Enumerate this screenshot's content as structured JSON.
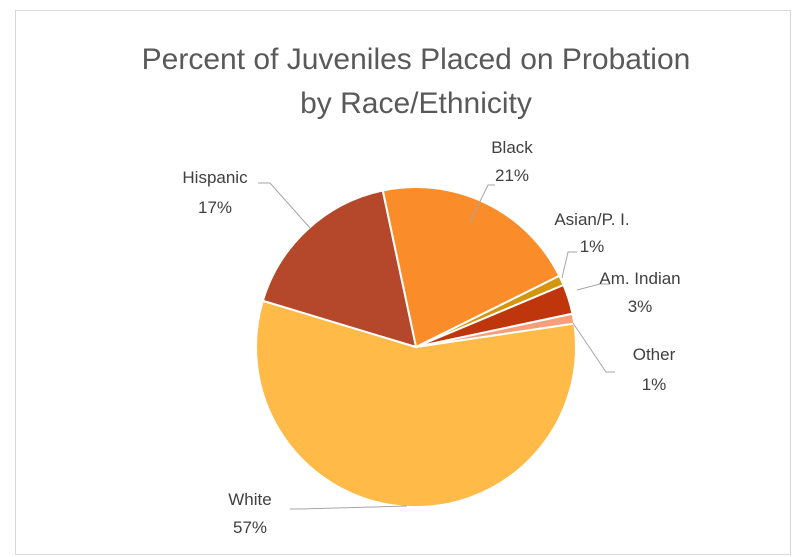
{
  "chart_data": {
    "type": "pie",
    "title": [
      "Percent of Juveniles Placed on Probation",
      "by Race/Ethnicity"
    ],
    "slices": [
      {
        "name": "Black",
        "value": 21,
        "label": "21%",
        "color": "#fb8c2a"
      },
      {
        "name": "Asian/P. I.",
        "value": 1,
        "label": "1%",
        "color": "#d4960e"
      },
      {
        "name": "Am. Indian",
        "value": 3,
        "label": "3%",
        "color": "#bf360c"
      },
      {
        "name": "Other",
        "value": 1,
        "label": "1%",
        "color": "#f5a07a"
      },
      {
        "name": "White",
        "value": 57,
        "label": "57%",
        "color": "#ffba47"
      },
      {
        "name": "Hispanic",
        "value": 17,
        "label": "17%",
        "color": "#b5472a"
      }
    ],
    "legend": "none",
    "data_labels": "category name and percentage, outside with leader lines"
  }
}
